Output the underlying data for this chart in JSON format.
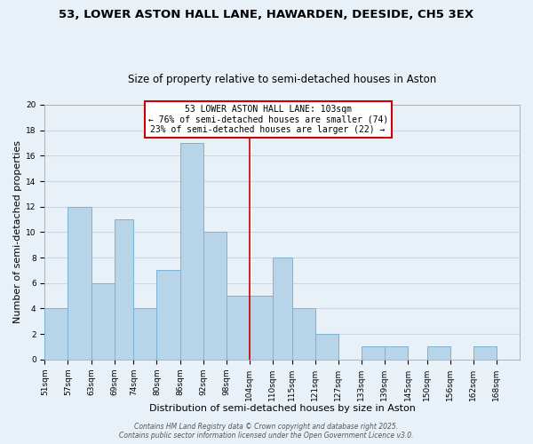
{
  "title": "53, LOWER ASTON HALL LANE, HAWARDEN, DEESIDE, CH5 3EX",
  "subtitle": "Size of property relative to semi-detached houses in Aston",
  "xlabel": "Distribution of semi-detached houses by size in Aston",
  "ylabel": "Number of semi-detached properties",
  "bar_left_edges": [
    51,
    57,
    63,
    69,
    74,
    80,
    86,
    92,
    98,
    104,
    110,
    115,
    121,
    127,
    133,
    139,
    145,
    150,
    156,
    162
  ],
  "bar_widths": [
    6,
    6,
    6,
    5,
    6,
    6,
    6,
    6,
    6,
    6,
    5,
    6,
    6,
    6,
    6,
    6,
    5,
    6,
    6,
    6
  ],
  "bar_heights": [
    4,
    12,
    6,
    11,
    4,
    7,
    17,
    10,
    5,
    5,
    8,
    4,
    2,
    0,
    1,
    1,
    0,
    1,
    0,
    1
  ],
  "bar_color": "#b8d4e8",
  "bar_edgecolor": "#7ab4d4",
  "vline_x": 104,
  "vline_color": "#cc0000",
  "ylim": [
    0,
    20
  ],
  "yticks": [
    0,
    2,
    4,
    6,
    8,
    10,
    12,
    14,
    16,
    18,
    20
  ],
  "xtick_labels": [
    "51sqm",
    "57sqm",
    "63sqm",
    "69sqm",
    "74sqm",
    "80sqm",
    "86sqm",
    "92sqm",
    "98sqm",
    "104sqm",
    "110sqm",
    "115sqm",
    "121sqm",
    "127sqm",
    "133sqm",
    "139sqm",
    "145sqm",
    "150sqm",
    "156sqm",
    "162sqm",
    "168sqm"
  ],
  "xtick_positions": [
    51,
    57,
    63,
    69,
    74,
    80,
    86,
    92,
    98,
    104,
    110,
    115,
    121,
    127,
    133,
    139,
    145,
    150,
    156,
    162,
    168
  ],
  "legend_title": "53 LOWER ASTON HALL LANE: 103sqm",
  "legend_line1": "← 76% of semi-detached houses are smaller (74)",
  "legend_line2": "23% of semi-detached houses are larger (22) →",
  "legend_box_color": "#ffffff",
  "legend_box_edgecolor": "#cc0000",
  "grid_color": "#c8d8e8",
  "bg_color": "#e8f0f8",
  "footer1": "Contains HM Land Registry data © Crown copyright and database right 2025.",
  "footer2": "Contains public sector information licensed under the Open Government Licence v3.0.",
  "title_fontsize": 9.5,
  "subtitle_fontsize": 8.5,
  "axis_label_fontsize": 8,
  "tick_fontsize": 6.5,
  "legend_fontsize": 7,
  "footer_fontsize": 5.5
}
